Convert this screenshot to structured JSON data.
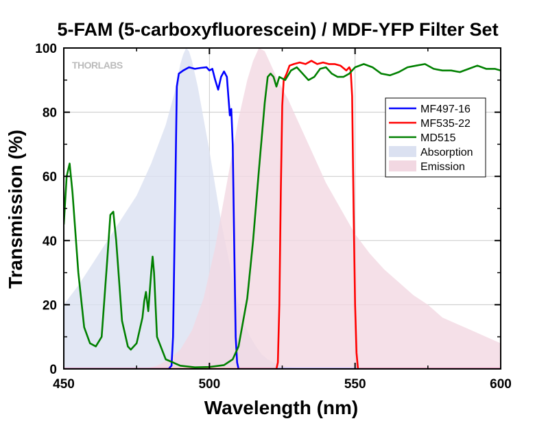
{
  "chart_data": {
    "type": "line",
    "title": "5-FAM (5-carboxyfluorescein) / MDF-YFP Filter Set",
    "xlabel": "Wavelength (nm)",
    "ylabel": "Transmission (%)",
    "xlim": [
      450,
      600
    ],
    "ylim": [
      0,
      100
    ],
    "xticks": [
      450,
      500,
      550,
      600
    ],
    "yticks": [
      0,
      20,
      40,
      60,
      80,
      100
    ],
    "grid": true,
    "legend_position": "right",
    "brand": "THORLABS",
    "series": [
      {
        "name": "MF497-16",
        "kind": "line",
        "color": "#0000ff",
        "points": [
          [
            450,
            0
          ],
          [
            486,
            0
          ],
          [
            487,
            1
          ],
          [
            487.5,
            10
          ],
          [
            488.2,
            50
          ],
          [
            488.8,
            88
          ],
          [
            489.5,
            92
          ],
          [
            491,
            93
          ],
          [
            493,
            94
          ],
          [
            495,
            93.5
          ],
          [
            497,
            93.8
          ],
          [
            499,
            94
          ],
          [
            500,
            93
          ],
          [
            501,
            93.5
          ],
          [
            502,
            90
          ],
          [
            503,
            87
          ],
          [
            504,
            91
          ],
          [
            505,
            92.7
          ],
          [
            506,
            91
          ],
          [
            506.5,
            85
          ],
          [
            507,
            79
          ],
          [
            507.5,
            81
          ],
          [
            508,
            70
          ],
          [
            508.5,
            40
          ],
          [
            509,
            10
          ],
          [
            509.5,
            2
          ],
          [
            510,
            0
          ],
          [
            600,
            0
          ]
        ]
      },
      {
        "name": "MF535-22",
        "kind": "line",
        "color": "#ff0000",
        "points": [
          [
            450,
            0
          ],
          [
            523,
            0
          ],
          [
            523.5,
            2
          ],
          [
            524,
            20
          ],
          [
            524.5,
            55
          ],
          [
            525,
            82
          ],
          [
            525.5,
            90
          ],
          [
            526.5,
            92
          ],
          [
            527.5,
            94.5
          ],
          [
            529,
            95
          ],
          [
            531,
            95.5
          ],
          [
            533,
            95
          ],
          [
            535,
            96
          ],
          [
            537,
            95
          ],
          [
            539,
            95.5
          ],
          [
            541,
            95
          ],
          [
            543,
            95
          ],
          [
            545,
            94.5
          ],
          [
            547,
            93
          ],
          [
            548,
            94
          ],
          [
            548.5,
            93
          ],
          [
            549,
            85
          ],
          [
            549.5,
            50
          ],
          [
            550,
            20
          ],
          [
            550.5,
            5
          ],
          [
            551,
            0
          ],
          [
            600,
            0
          ]
        ]
      },
      {
        "name": "MD515",
        "kind": "line",
        "color": "#008000",
        "points": [
          [
            450,
            45
          ],
          [
            451,
            60
          ],
          [
            452,
            64
          ],
          [
            453,
            55
          ],
          [
            455,
            30
          ],
          [
            457,
            13
          ],
          [
            459,
            8
          ],
          [
            461,
            7
          ],
          [
            463,
            10
          ],
          [
            465,
            35
          ],
          [
            466,
            48
          ],
          [
            467,
            49
          ],
          [
            468,
            40
          ],
          [
            470,
            15
          ],
          [
            472,
            7
          ],
          [
            473,
            6
          ],
          [
            475,
            8
          ],
          [
            477,
            16
          ],
          [
            477.6,
            21
          ],
          [
            478.2,
            24
          ],
          [
            479,
            18
          ],
          [
            480,
            30
          ],
          [
            480.5,
            35
          ],
          [
            481,
            30
          ],
          [
            482,
            10
          ],
          [
            485,
            3
          ],
          [
            490,
            1
          ],
          [
            495,
            0.5
          ],
          [
            500,
            0.6
          ],
          [
            505,
            1.2
          ],
          [
            508,
            3
          ],
          [
            510,
            7
          ],
          [
            513,
            22
          ],
          [
            515,
            40
          ],
          [
            517,
            62
          ],
          [
            519,
            83
          ],
          [
            520,
            91
          ],
          [
            521,
            92
          ],
          [
            522,
            91
          ],
          [
            523,
            88
          ],
          [
            524,
            91
          ],
          [
            526,
            90
          ],
          [
            528,
            93
          ],
          [
            530,
            94
          ],
          [
            532,
            92
          ],
          [
            534,
            90
          ],
          [
            536,
            91
          ],
          [
            538,
            93.5
          ],
          [
            540,
            94
          ],
          [
            542,
            92
          ],
          [
            544,
            91
          ],
          [
            546,
            91
          ],
          [
            548,
            92
          ],
          [
            550,
            94
          ],
          [
            553,
            95
          ],
          [
            556,
            94
          ],
          [
            559,
            92
          ],
          [
            562,
            91.5
          ],
          [
            565,
            92.5
          ],
          [
            568,
            94
          ],
          [
            571,
            94.5
          ],
          [
            574,
            95
          ],
          [
            577,
            93.5
          ],
          [
            580,
            93
          ],
          [
            583,
            93
          ],
          [
            586,
            92.5
          ],
          [
            589,
            93.5
          ],
          [
            592,
            94.5
          ],
          [
            595,
            93.5
          ],
          [
            598,
            93.5
          ],
          [
            600,
            93
          ]
        ]
      },
      {
        "name": "Absorption",
        "kind": "area",
        "color": "#dbe1f1",
        "points": [
          [
            450,
            20
          ],
          [
            455,
            26
          ],
          [
            460,
            33
          ],
          [
            465,
            40
          ],
          [
            470,
            47
          ],
          [
            475,
            54
          ],
          [
            480,
            64
          ],
          [
            485,
            76
          ],
          [
            488,
            86
          ],
          [
            490,
            95
          ],
          [
            491,
            98
          ],
          [
            492,
            100
          ],
          [
            493,
            99
          ],
          [
            494,
            96
          ],
          [
            496,
            88
          ],
          [
            498,
            78
          ],
          [
            500,
            68
          ],
          [
            502,
            57
          ],
          [
            504,
            46
          ],
          [
            506,
            37
          ],
          [
            508,
            28
          ],
          [
            510,
            20
          ],
          [
            512,
            14
          ],
          [
            514,
            10
          ],
          [
            516,
            7
          ],
          [
            518,
            4.5
          ],
          [
            520,
            3
          ],
          [
            523,
            1.5
          ],
          [
            526,
            0.8
          ],
          [
            530,
            0.3
          ],
          [
            535,
            0
          ],
          [
            600,
            0
          ]
        ]
      },
      {
        "name": "Emission",
        "kind": "area",
        "color": "#f2d8e2",
        "points": [
          [
            450,
            0
          ],
          [
            478,
            0
          ],
          [
            482,
            1
          ],
          [
            486,
            3
          ],
          [
            490,
            6
          ],
          [
            494,
            12
          ],
          [
            498,
            22
          ],
          [
            502,
            38
          ],
          [
            506,
            58
          ],
          [
            510,
            78
          ],
          [
            513,
            90
          ],
          [
            515,
            96
          ],
          [
            517,
            100
          ],
          [
            519,
            99
          ],
          [
            521,
            95
          ],
          [
            524,
            89
          ],
          [
            527,
            84
          ],
          [
            530,
            78
          ],
          [
            535,
            68
          ],
          [
            540,
            58
          ],
          [
            545,
            50
          ],
          [
            550,
            42
          ],
          [
            555,
            36
          ],
          [
            560,
            31
          ],
          [
            565,
            27
          ],
          [
            570,
            23
          ],
          [
            575,
            20
          ],
          [
            580,
            16
          ],
          [
            585,
            14
          ],
          [
            590,
            12
          ],
          [
            595,
            10
          ],
          [
            600,
            8
          ]
        ]
      }
    ]
  }
}
